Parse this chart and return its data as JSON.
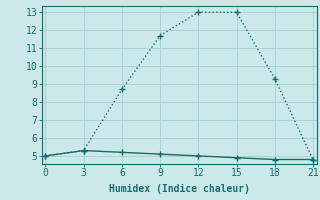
{
  "xlabel": "Humidex (Indice chaleur)",
  "ylabel": "",
  "background_color": "#cce9e9",
  "grid_color": "#aad4d4",
  "line1_x": [
    0,
    3,
    6,
    9,
    12,
    15,
    18,
    21
  ],
  "line1_y": [
    5.0,
    5.3,
    8.7,
    11.7,
    13.0,
    13.0,
    9.3,
    4.8
  ],
  "line2_x": [
    0,
    3,
    6,
    9,
    12,
    15,
    18,
    21
  ],
  "line2_y": [
    5.0,
    5.3,
    5.2,
    5.1,
    5.0,
    4.9,
    4.8,
    4.8
  ],
  "line_color": "#1a6b6b",
  "xlim": [
    -0.3,
    21.3
  ],
  "ylim": [
    4.55,
    13.35
  ],
  "xticks": [
    0,
    3,
    6,
    9,
    12,
    15,
    18,
    21
  ],
  "yticks": [
    5,
    6,
    7,
    8,
    9,
    10,
    11,
    12,
    13
  ],
  "xlabel_fontsize": 7,
  "tick_fontsize": 7
}
